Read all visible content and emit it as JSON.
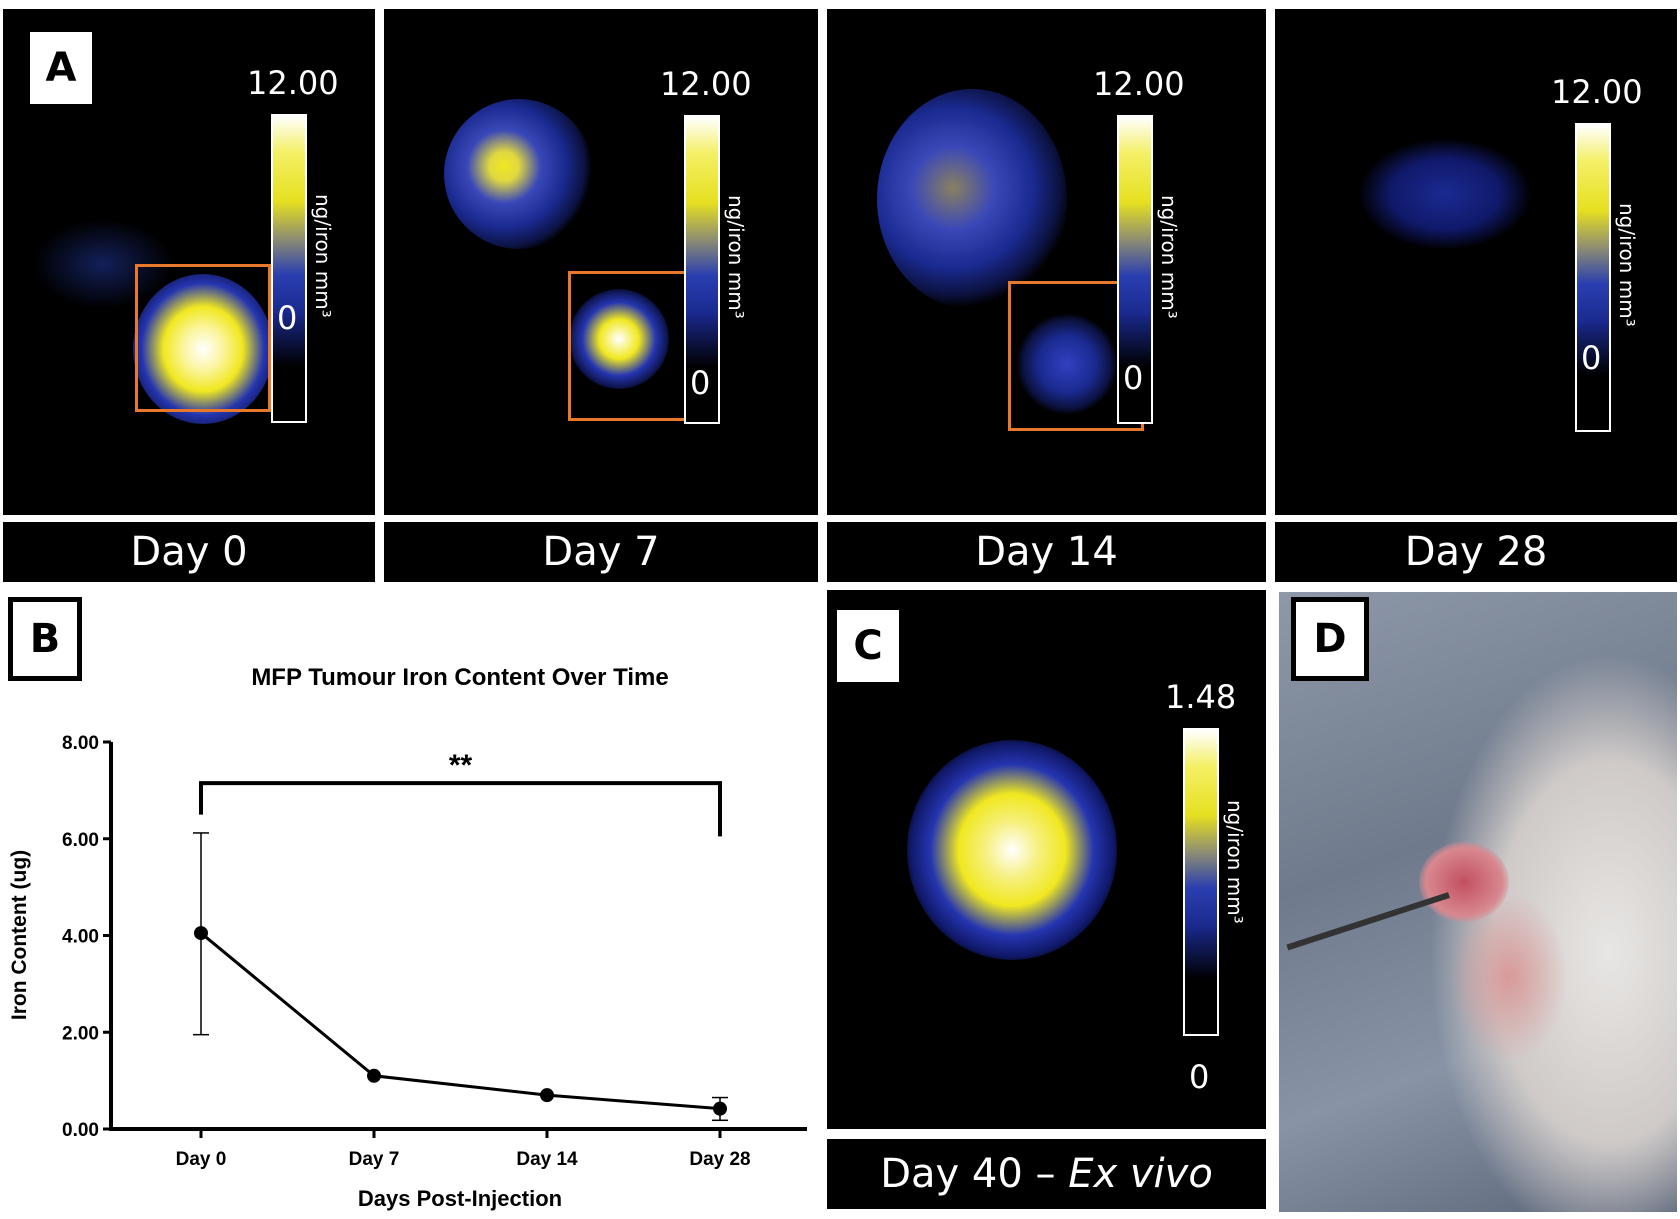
{
  "panel_a": {
    "letter": "A",
    "unit": "ng/iron mm³",
    "frames": [
      {
        "label": "Day 0",
        "max": "12.00",
        "min": "0"
      },
      {
        "label": "Day 7",
        "max": "12.00",
        "min": "0"
      },
      {
        "label": "Day 14",
        "max": "12.00",
        "min": "0"
      },
      {
        "label": "Day 28",
        "max": "12.00",
        "min": "0"
      }
    ]
  },
  "panel_b": {
    "letter": "B"
  },
  "panel_c": {
    "letter": "C",
    "max": "1.48",
    "min": "0",
    "unit": "ng/iron mm³",
    "label_prefix": "Day 40 – ",
    "label_italic": "Ex vivo"
  },
  "panel_d": {
    "letter": "D"
  },
  "chart_data": {
    "type": "line",
    "title": "MFP Tumour Iron Content Over Time",
    "xlabel": "Days Post-Injection",
    "ylabel": "Iron Content (ug)",
    "categories": [
      "Day 0",
      "Day 7",
      "Day 14",
      "Day 28"
    ],
    "series": [
      {
        "name": "Iron content",
        "values": [
          4.05,
          1.1,
          0.7,
          0.42
        ],
        "err_low": [
          1.95,
          null,
          null,
          0.18
        ],
        "err_high": [
          6.12,
          null,
          null,
          0.65
        ]
      }
    ],
    "ylim": [
      0,
      8
    ],
    "yticks": [
      "0.00",
      "2.00",
      "4.00",
      "6.00",
      "8.00"
    ],
    "significance": {
      "label": "**",
      "from": "Day 0",
      "to": "Day 28"
    }
  }
}
